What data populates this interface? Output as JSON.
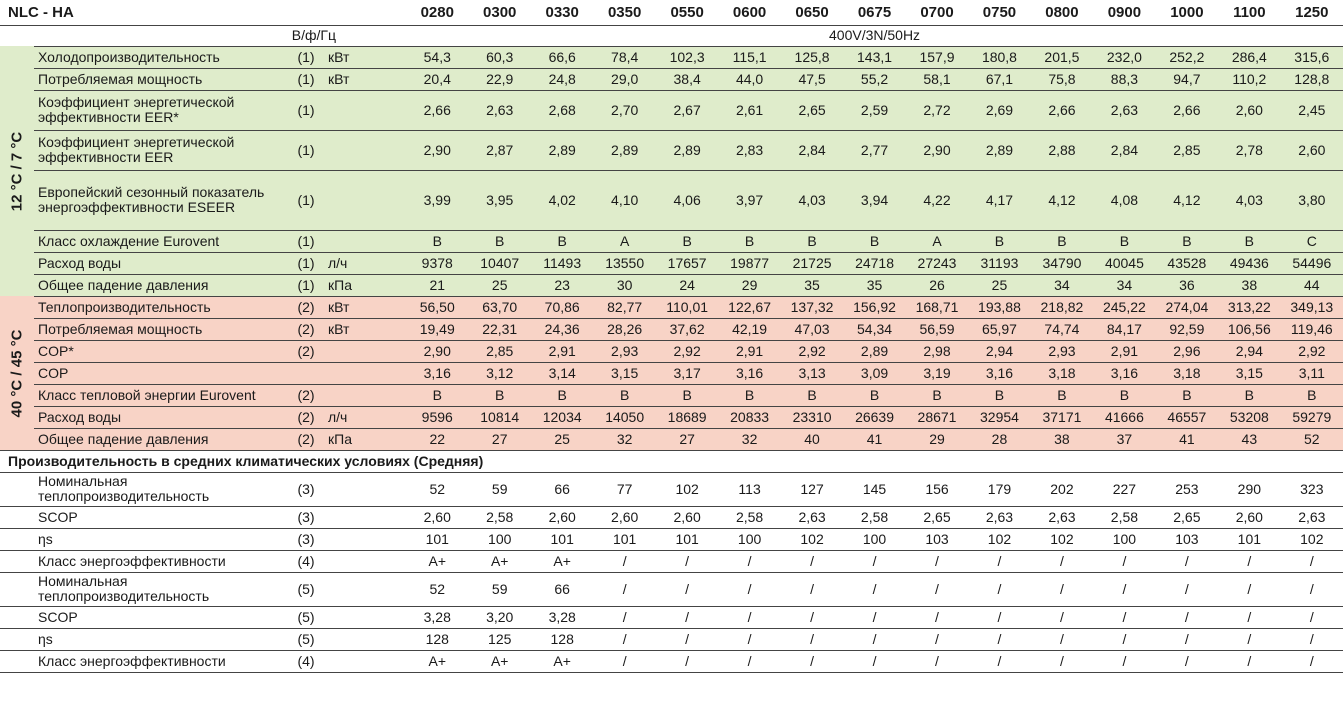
{
  "header": {
    "title": "NLC - HA",
    "models": [
      "0280",
      "0300",
      "0330",
      "0350",
      "0550",
      "0600",
      "0650",
      "0675",
      "0700",
      "0750",
      "0800",
      "0900",
      "1000",
      "1100",
      "1250"
    ],
    "power_label": "В/ф/Гц",
    "power_value": "400V/3N/50Hz"
  },
  "cooling": {
    "side_label": "12 °C / 7 °C",
    "rows": [
      {
        "label": "Холодопроизводительность",
        "ref": "(1)",
        "unit": "кВт",
        "values": [
          "54,3",
          "60,3",
          "66,6",
          "78,4",
          "102,3",
          "115,1",
          "125,8",
          "143,1",
          "157,9",
          "180,8",
          "201,5",
          "232,0",
          "252,2",
          "286,4",
          "315,6"
        ]
      },
      {
        "label": "Потребляемая мощность",
        "ref": "(1)",
        "unit": "кВт",
        "values": [
          "20,4",
          "22,9",
          "24,8",
          "29,0",
          "38,4",
          "44,0",
          "47,5",
          "55,2",
          "58,1",
          "67,1",
          "75,8",
          "88,3",
          "94,7",
          "110,2",
          "128,8"
        ]
      },
      {
        "label": "Коэффициент энергетической эффективности EER*",
        "ref": "(1)",
        "unit": "",
        "values": [
          "2,66",
          "2,63",
          "2,68",
          "2,70",
          "2,67",
          "2,61",
          "2,65",
          "2,59",
          "2,72",
          "2,69",
          "2,66",
          "2,63",
          "2,66",
          "2,60",
          "2,45"
        ]
      },
      {
        "label": "Коэффициент энергетической эффективности EER",
        "ref": "(1)",
        "unit": "",
        "values": [
          "2,90",
          "2,87",
          "2,89",
          "2,89",
          "2,89",
          "2,83",
          "2,84",
          "2,77",
          "2,90",
          "2,89",
          "2,88",
          "2,84",
          "2,85",
          "2,78",
          "2,60"
        ]
      },
      {
        "label": "Европейский сезонный показатель энергоэффективности ESEER",
        "ref": "(1)",
        "unit": "",
        "values": [
          "3,99",
          "3,95",
          "4,02",
          "4,10",
          "4,06",
          "3,97",
          "4,03",
          "3,94",
          "4,22",
          "4,17",
          "4,12",
          "4,08",
          "4,12",
          "4,03",
          "3,80"
        ]
      },
      {
        "label": "Класс охлаждение Eurovent",
        "ref": "(1)",
        "unit": "",
        "values": [
          "B",
          "B",
          "B",
          "A",
          "B",
          "B",
          "B",
          "B",
          "A",
          "B",
          "B",
          "B",
          "B",
          "B",
          "C"
        ]
      },
      {
        "label": "Расход воды",
        "ref": "(1)",
        "unit": "л/ч",
        "values": [
          "9378",
          "10407",
          "11493",
          "13550",
          "17657",
          "19877",
          "21725",
          "24718",
          "27243",
          "31193",
          "34790",
          "40045",
          "43528",
          "49436",
          "54496"
        ]
      },
      {
        "label": "Общее падение давления",
        "ref": "(1)",
        "unit": "кПа",
        "values": [
          "21",
          "25",
          "23",
          "30",
          "24",
          "29",
          "35",
          "35",
          "26",
          "25",
          "34",
          "34",
          "36",
          "38",
          "44"
        ]
      }
    ]
  },
  "heating": {
    "side_label": "40 °C / 45 °C",
    "rows": [
      {
        "label": "Теплопроизводительность",
        "ref": "(2)",
        "unit": "кВт",
        "values": [
          "56,50",
          "63,70",
          "70,86",
          "82,77",
          "110,01",
          "122,67",
          "137,32",
          "156,92",
          "168,71",
          "193,88",
          "218,82",
          "245,22",
          "274,04",
          "313,22",
          "349,13"
        ]
      },
      {
        "label": "Потребляемая мощность",
        "ref": "(2)",
        "unit": "кВт",
        "values": [
          "19,49",
          "22,31",
          "24,36",
          "28,26",
          "37,62",
          "42,19",
          "47,03",
          "54,34",
          "56,59",
          "65,97",
          "74,74",
          "84,17",
          "92,59",
          "106,56",
          "119,46"
        ]
      },
      {
        "label": "COP*",
        "ref": "(2)",
        "unit": "",
        "values": [
          "2,90",
          "2,85",
          "2,91",
          "2,93",
          "2,92",
          "2,91",
          "2,92",
          "2,89",
          "2,98",
          "2,94",
          "2,93",
          "2,91",
          "2,96",
          "2,94",
          "2,92"
        ]
      },
      {
        "label": "COP",
        "ref": "",
        "unit": "",
        "values": [
          "3,16",
          "3,12",
          "3,14",
          "3,15",
          "3,17",
          "3,16",
          "3,13",
          "3,09",
          "3,19",
          "3,16",
          "3,18",
          "3,16",
          "3,18",
          "3,15",
          "3,11"
        ]
      },
      {
        "label": "Класс тепловой энергии Eurovent",
        "ref": "(2)",
        "unit": "",
        "values": [
          "B",
          "B",
          "B",
          "B",
          "B",
          "B",
          "B",
          "B",
          "B",
          "B",
          "B",
          "B",
          "B",
          "B",
          "B"
        ]
      },
      {
        "label": "Расход воды",
        "ref": "(2)",
        "unit": "л/ч",
        "values": [
          "9596",
          "10814",
          "12034",
          "14050",
          "18689",
          "20833",
          "23310",
          "26639",
          "28671",
          "32954",
          "37171",
          "41666",
          "46557",
          "53208",
          "59279"
        ]
      },
      {
        "label": "Общее падение давления",
        "ref": "(2)",
        "unit": "кПа",
        "values": [
          "22",
          "27",
          "25",
          "32",
          "27",
          "32",
          "40",
          "41",
          "29",
          "28",
          "38",
          "37",
          "41",
          "43",
          "52"
        ]
      }
    ]
  },
  "seasonal": {
    "title": "Производительность в средних климатических условиях (Средняя)",
    "rows": [
      {
        "label": "Номинальная теплопроизводительность",
        "ref": "(3)",
        "unit": "",
        "values": [
          "52",
          "59",
          "66",
          "77",
          "102",
          "113",
          "127",
          "145",
          "156",
          "179",
          "202",
          "227",
          "253",
          "290",
          "323"
        ]
      },
      {
        "label": "SCOP",
        "ref": "(3)",
        "unit": "",
        "values": [
          "2,60",
          "2,58",
          "2,60",
          "2,60",
          "2,60",
          "2,58",
          "2,63",
          "2,58",
          "2,65",
          "2,63",
          "2,63",
          "2,58",
          "2,65",
          "2,60",
          "2,63"
        ]
      },
      {
        "label": "ηs",
        "ref": "(3)",
        "unit": "",
        "values": [
          "101",
          "100",
          "101",
          "101",
          "101",
          "100",
          "102",
          "100",
          "103",
          "102",
          "102",
          "100",
          "103",
          "101",
          "102"
        ]
      },
      {
        "label": "Класс энергоэффективности",
        "ref": "(4)",
        "unit": "",
        "values": [
          "A+",
          "A+",
          "A+",
          "/",
          "/",
          "/",
          "/",
          "/",
          "/",
          "/",
          "/",
          "/",
          "/",
          "/",
          "/"
        ]
      },
      {
        "label": "Номинальная теплопроизводительность",
        "ref": "(5)",
        "unit": "",
        "values": [
          "52",
          "59",
          "66",
          "/",
          "/",
          "/",
          "/",
          "/",
          "/",
          "/",
          "/",
          "/",
          "/",
          "/",
          "/"
        ]
      },
      {
        "label": "SCOP",
        "ref": "(5)",
        "unit": "",
        "values": [
          "3,28",
          "3,20",
          "3,28",
          "/",
          "/",
          "/",
          "/",
          "/",
          "/",
          "/",
          "/",
          "/",
          "/",
          "/",
          "/"
        ]
      },
      {
        "label": "ηs",
        "ref": "(5)",
        "unit": "",
        "values": [
          "128",
          "125",
          "128",
          "/",
          "/",
          "/",
          "/",
          "/",
          "/",
          "/",
          "/",
          "/",
          "/",
          "/",
          "/"
        ]
      },
      {
        "label": "Класс энергоэффективности",
        "ref": "(4)",
        "unit": "",
        "values": [
          "A+",
          "A+",
          "A+",
          "/",
          "/",
          "/",
          "/",
          "/",
          "/",
          "/",
          "/",
          "/",
          "/",
          "/",
          "/"
        ]
      }
    ]
  },
  "colors": {
    "cooling_bg": "#dfeccb",
    "heating_bg": "#f8d3c6"
  }
}
